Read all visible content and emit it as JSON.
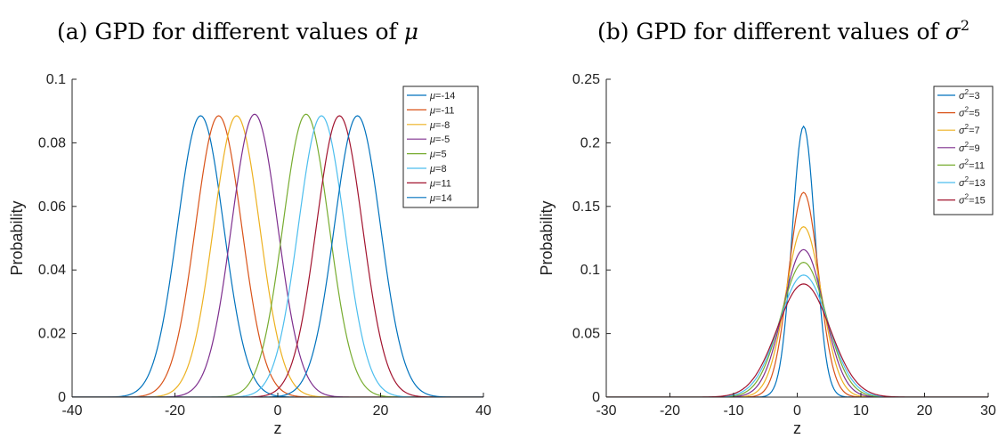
{
  "chart_data": [
    {
      "type": "line",
      "title_prefix": "(a) GPD for different values of ",
      "title_symbol": "μ",
      "title_sup": "",
      "xlabel": "z",
      "ylabel": "Probability",
      "xlim": [
        -40,
        40
      ],
      "ylim": [
        0,
        0.1
      ],
      "xticks": [
        -40,
        -20,
        0,
        20,
        40
      ],
      "xtick_labels": [
        "-40",
        "-20",
        "0",
        "20",
        "40"
      ],
      "yticks": [
        0,
        0.02,
        0.04,
        0.06,
        0.08,
        0.1
      ],
      "ytick_labels": [
        "0",
        "0.02",
        "0.04",
        "0.06",
        "0.08",
        "0.1"
      ],
      "legend_position": "top-right",
      "series": [
        {
          "sym": "μ",
          "sup": "",
          "eq": "=-14",
          "color": "#0072BD",
          "peak_x": -15,
          "peak_y": 0.0885,
          "sd": 4.5
        },
        {
          "sym": "μ",
          "sup": "",
          "eq": "=-11",
          "color": "#D95319",
          "peak_x": -11.5,
          "peak_y": 0.0885,
          "sd": 4.5
        },
        {
          "sym": "μ",
          "sup": "",
          "eq": "=-8",
          "color": "#EDB120",
          "peak_x": -8,
          "peak_y": 0.0885,
          "sd": 4.5
        },
        {
          "sym": "μ",
          "sup": "",
          "eq": "=-5",
          "color": "#7E2F8E",
          "peak_x": -4.5,
          "peak_y": 0.089,
          "sd": 4.5
        },
        {
          "sym": "μ",
          "sup": "",
          "eq": "=5",
          "color": "#77AC30",
          "peak_x": 5.5,
          "peak_y": 0.089,
          "sd": 4.5
        },
        {
          "sym": "μ",
          "sup": "",
          "eq": "=8",
          "color": "#4DBEEE",
          "peak_x": 8.5,
          "peak_y": 0.0885,
          "sd": 4.5
        },
        {
          "sym": "μ",
          "sup": "",
          "eq": "=11",
          "color": "#A2142F",
          "peak_x": 12,
          "peak_y": 0.0885,
          "sd": 4.5
        },
        {
          "sym": "μ",
          "sup": "",
          "eq": "=14",
          "color": "#0072BD",
          "peak_x": 15.5,
          "peak_y": 0.0885,
          "sd": 4.5
        }
      ]
    },
    {
      "type": "line",
      "title_prefix": "(b) GPD for different values of ",
      "title_symbol": "σ",
      "title_sup": "2",
      "xlabel": "z",
      "ylabel": "Probability",
      "xlim": [
        -30,
        30
      ],
      "ylim": [
        0,
        0.25
      ],
      "xticks": [
        -30,
        -20,
        -10,
        0,
        10,
        20,
        30
      ],
      "xtick_labels": [
        "-30",
        "-20",
        "-10",
        "0",
        "10",
        "20",
        "30"
      ],
      "yticks": [
        0,
        0.05,
        0.1,
        0.15,
        0.2,
        0.25
      ],
      "ytick_labels": [
        "0",
        "0.05",
        "0.1",
        "0.15",
        "0.2",
        "0.25"
      ],
      "legend_position": "top-right",
      "series": [
        {
          "sym": "σ",
          "sup": "2",
          "eq": "=3",
          "color": "#0072BD",
          "peak_x": 1,
          "peak_y": 0.213,
          "sd": 1.8
        },
        {
          "sym": "σ",
          "sup": "2",
          "eq": "=5",
          "color": "#D95319",
          "peak_x": 1,
          "peak_y": 0.161,
          "sd": 2.35
        },
        {
          "sym": "σ",
          "sup": "2",
          "eq": "=7",
          "color": "#EDB120",
          "peak_x": 1,
          "peak_y": 0.134,
          "sd": 2.8
        },
        {
          "sym": "σ",
          "sup": "2",
          "eq": "=9",
          "color": "#7E2F8E",
          "peak_x": 1,
          "peak_y": 0.116,
          "sd": 3.2
        },
        {
          "sym": "σ",
          "sup": "2",
          "eq": "=11",
          "color": "#77AC30",
          "peak_x": 1,
          "peak_y": 0.106,
          "sd": 3.55
        },
        {
          "sym": "σ",
          "sup": "2",
          "eq": "=13",
          "color": "#4DBEEE",
          "peak_x": 1,
          "peak_y": 0.096,
          "sd": 3.85
        },
        {
          "sym": "σ",
          "sup": "2",
          "eq": "=15",
          "color": "#A2142F",
          "peak_x": 1,
          "peak_y": 0.089,
          "sd": 4.15
        }
      ]
    }
  ]
}
